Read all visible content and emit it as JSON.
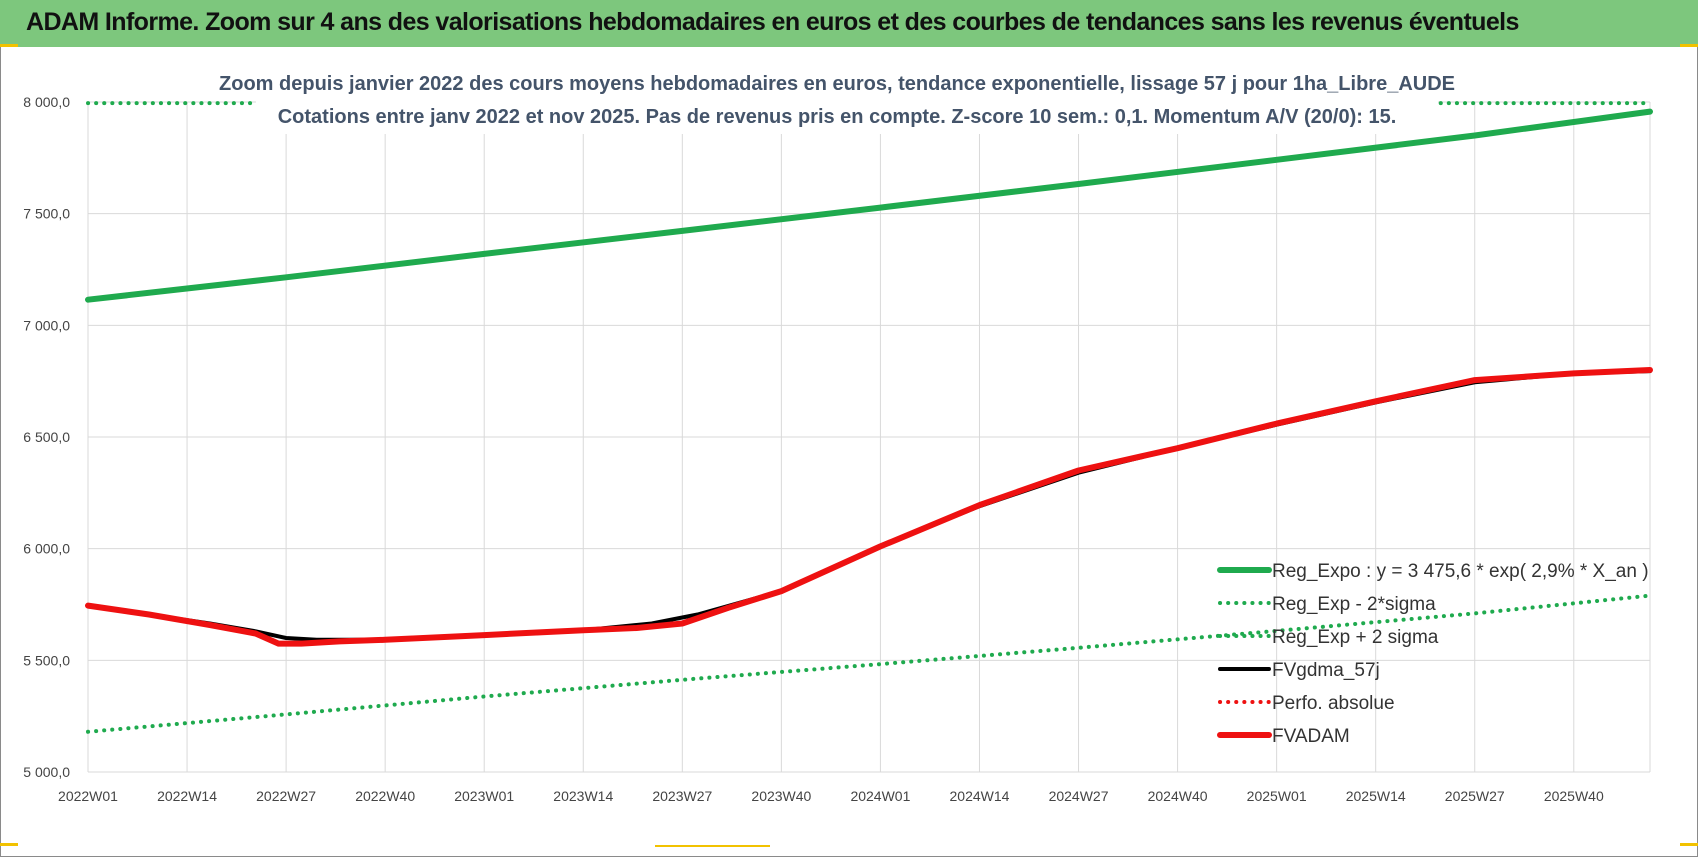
{
  "header": {
    "title": "ADAM Informe. Zoom sur 4 ans des valorisations hebdomadaires en euros et des courbes de tendances sans les revenus éventuels"
  },
  "colors": {
    "header_bg": "#7dc77d",
    "reg_expo": "#1faa4e",
    "fvgdma": "#000000",
    "fvadam": "#ee1111",
    "perfo": "#ee1111"
  },
  "chart_data": {
    "type": "line",
    "title": "Zoom depuis janvier 2022 des cours moyens hebdomadaires en euros, tendance exponentielle, lissage 57 j pour 1ha_Libre_AUDE",
    "subtitle": "Cotations entre janv 2022 et nov 2025. Pas de revenus pris en compte. Z-score 10 sem.: 0,1. Momentum A/V (20/0): 15.",
    "x_tick_labels": [
      "2022W01",
      "2022W14",
      "2022W27",
      "2022W40",
      "2023W01",
      "2023W14",
      "2023W27",
      "2023W40",
      "2024W01",
      "2024W14",
      "2024W27",
      "2024W40",
      "2025W01",
      "2025W14",
      "2025W27",
      "2025W40"
    ],
    "x_range_weeks": [
      0,
      205
    ],
    "ylim": [
      5000,
      8000
    ],
    "y_ticks": [
      5000,
      5500,
      6000,
      6500,
      7000,
      7500,
      8000
    ],
    "y_tick_labels": [
      "5 000,0",
      "5 500,0",
      "6 000,0",
      "6 500,0",
      "7 000,0",
      "7 500,0",
      "8 000,0"
    ],
    "grid": true,
    "legend_position": "bottom-right",
    "series": [
      {
        "name": "Reg_Expo : y = 3 475,6 * exp( 2,9% *  X_an )",
        "style": "solid-thick",
        "color": "#1faa4e",
        "points": [
          [
            0,
            7115
          ],
          [
            26,
            7215
          ],
          [
            52,
            7320
          ],
          [
            78,
            7423
          ],
          [
            104,
            7527
          ],
          [
            130,
            7633
          ],
          [
            156,
            7741
          ],
          [
            182,
            7850
          ],
          [
            205,
            7957
          ]
        ]
      },
      {
        "name": "Reg_Exp - 2*sigma",
        "style": "dotted",
        "color": "#1faa4e",
        "points": [
          [
            0,
            5180
          ],
          [
            26,
            5258
          ],
          [
            52,
            5338
          ],
          [
            78,
            5413
          ],
          [
            104,
            5483
          ],
          [
            130,
            5556
          ],
          [
            156,
            5632
          ],
          [
            182,
            5710
          ],
          [
            205,
            5790
          ]
        ]
      },
      {
        "name": "Reg_Exp + 2 sigma",
        "style": "dotted",
        "color": "#1faa4e",
        "points": [
          [
            0,
            7995
          ],
          [
            22,
            7995
          ],
          [
            177,
            7995
          ],
          [
            205,
            7995
          ]
        ]
      },
      {
        "name": "FVgdma_57j",
        "style": "solid",
        "color": "#000000",
        "points": [
          [
            0,
            5745
          ],
          [
            8,
            5705
          ],
          [
            16,
            5665
          ],
          [
            22,
            5630
          ],
          [
            26,
            5600
          ],
          [
            30,
            5592
          ],
          [
            39,
            5592
          ],
          [
            52,
            5612
          ],
          [
            65,
            5635
          ],
          [
            74,
            5665
          ],
          [
            80,
            5705
          ],
          [
            91,
            5810
          ],
          [
            104,
            6010
          ],
          [
            117,
            6190
          ],
          [
            130,
            6340
          ],
          [
            143,
            6450
          ],
          [
            156,
            6555
          ],
          [
            169,
            6655
          ],
          [
            182,
            6745
          ],
          [
            195,
            6785
          ],
          [
            205,
            6795
          ]
        ]
      },
      {
        "name": "Perfo. absolue",
        "style": "dotted",
        "color": "#ee1111",
        "points": []
      },
      {
        "name": "FVADAM",
        "style": "solid-thick",
        "color": "#ee1111",
        "points": [
          [
            0,
            5745
          ],
          [
            8,
            5705
          ],
          [
            16,
            5658
          ],
          [
            22,
            5620
          ],
          [
            25,
            5575
          ],
          [
            28,
            5575
          ],
          [
            33,
            5585
          ],
          [
            39,
            5592
          ],
          [
            52,
            5613
          ],
          [
            65,
            5635
          ],
          [
            72,
            5645
          ],
          [
            78,
            5665
          ],
          [
            84,
            5735
          ],
          [
            91,
            5810
          ],
          [
            104,
            6010
          ],
          [
            117,
            6195
          ],
          [
            130,
            6350
          ],
          [
            143,
            6450
          ],
          [
            156,
            6560
          ],
          [
            169,
            6660
          ],
          [
            182,
            6755
          ],
          [
            195,
            6785
          ],
          [
            205,
            6800
          ]
        ]
      }
    ]
  }
}
